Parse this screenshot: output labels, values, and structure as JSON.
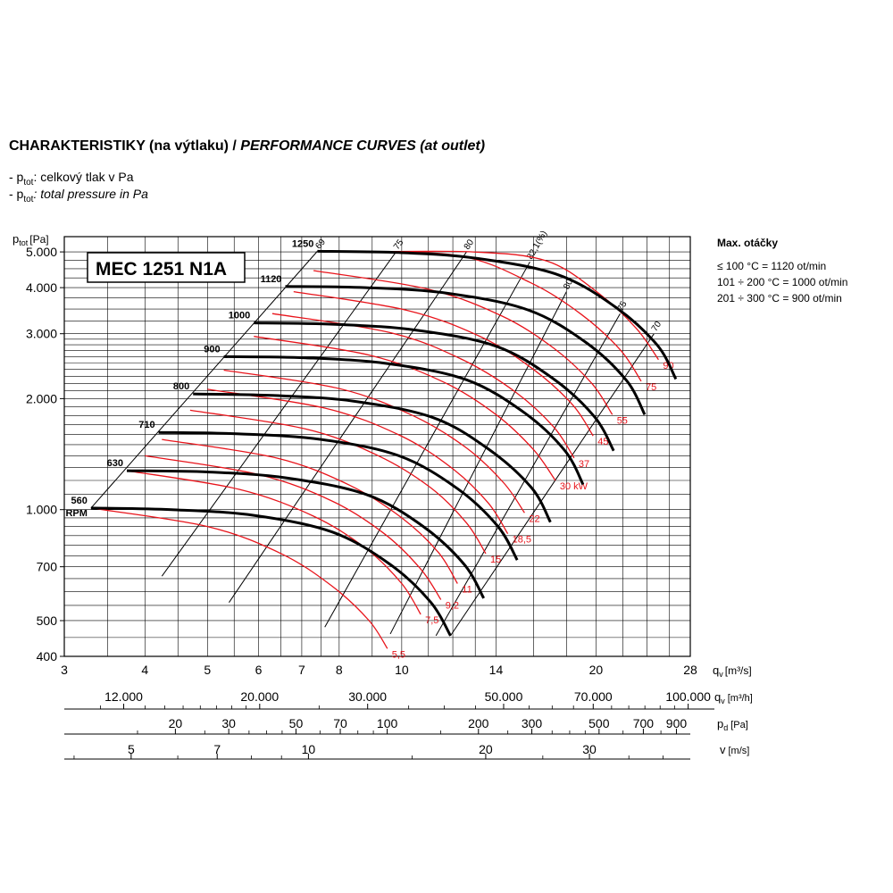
{
  "heading": {
    "cz": "CHARAKTERISTIKY (na výtlaku) / ",
    "en": "PERFORMANCE CURVES (at outlet)"
  },
  "legend_lines": [
    {
      "prefix": "- p",
      "sub": "tot",
      "text": ": celkový tlak v Pa"
    },
    {
      "prefix": "- p",
      "sub": "tot",
      "text": ": total pressure in Pa"
    }
  ],
  "model_label": "MEC 1251 N1A",
  "max_speed": {
    "title": "Max. otáčky",
    "lines": [
      "≤ 100 °C = 1120 ot/min",
      "101 ÷ 200 °C = 1000 ot/min",
      "201 ÷ 300 °C = 900 ot/min"
    ]
  },
  "colors": {
    "fan_curve": "#000000",
    "power_curve": "#e8141b",
    "grid": "#000000",
    "power_label": "#e8141b"
  },
  "chart_data": {
    "type": "line",
    "y_axis": {
      "label": "p",
      "label_sub": "tot",
      "unit": "[Pa]",
      "scale": "log",
      "range": [
        400,
        5500
      ],
      "ticks": [
        {
          "v": 400,
          "t": "400"
        },
        {
          "v": 500,
          "t": "500"
        },
        {
          "v": 700,
          "t": "700"
        },
        {
          "v": 1000,
          "t": "1.000"
        },
        {
          "v": 2000,
          "t": "2.000"
        },
        {
          "v": 3000,
          "t": "3.000"
        },
        {
          "v": 4000,
          "t": "4.000"
        },
        {
          "v": 5000,
          "t": "5.000"
        }
      ]
    },
    "x_axis": {
      "label": "q",
      "label_sub": "v",
      "unit": "[m³/s]",
      "scale": "log",
      "range": [
        3,
        28
      ],
      "ticks": [
        {
          "v": 3,
          "t": "3"
        },
        {
          "v": 4,
          "t": "4"
        },
        {
          "v": 5,
          "t": "5"
        },
        {
          "v": 6,
          "t": "6"
        },
        {
          "v": 7,
          "t": "7"
        },
        {
          "v": 8,
          "t": "8"
        },
        {
          "v": 10,
          "t": "10"
        },
        {
          "v": 14,
          "t": "14"
        },
        {
          "v": 20,
          "t": "20"
        },
        {
          "v": 28,
          "t": "28"
        }
      ]
    },
    "secondary_axes": [
      {
        "label": "q",
        "label_sub": "v",
        "unit": "[m³/h]",
        "ticks": [
          {
            "v": 12000,
            "t": "12.000"
          },
          {
            "v": 20000,
            "t": "20.000"
          },
          {
            "v": 30000,
            "t": "30.000"
          },
          {
            "v": 50000,
            "t": "50.000"
          },
          {
            "v": 70000,
            "t": "70.000"
          },
          {
            "v": 100000,
            "t": "100.000"
          }
        ]
      },
      {
        "label": "p",
        "label_sub": "d",
        "unit": "[Pa]",
        "ticks": [
          {
            "v": 20,
            "t": "20"
          },
          {
            "v": 30,
            "t": "30"
          },
          {
            "v": 50,
            "t": "50"
          },
          {
            "v": 70,
            "t": "70"
          },
          {
            "v": 100,
            "t": "100"
          },
          {
            "v": 200,
            "t": "200"
          },
          {
            "v": 300,
            "t": "300"
          },
          {
            "v": 500,
            "t": "500"
          },
          {
            "v": 700,
            "t": "700"
          },
          {
            "v": 900,
            "t": "900"
          }
        ]
      },
      {
        "label": "v",
        "label_sub": "",
        "unit": "[m/s]",
        "ticks": [
          {
            "v": 5,
            "t": "5"
          },
          {
            "v": 7,
            "t": "7"
          },
          {
            "v": 10,
            "t": "10"
          },
          {
            "v": 20,
            "t": "20"
          },
          {
            "v": 30,
            "t": "30"
          }
        ]
      }
    ],
    "fan_curves": [
      {
        "name": "560",
        "extra": "RPM",
        "q": [
          3.3,
          4.4,
          5.9,
          7.8,
          9.6,
          11.1,
          11.9
        ],
        "p": [
          1010,
          1000,
          965,
          870,
          710,
          560,
          455
        ]
      },
      {
        "name": "630",
        "q": [
          3.75,
          5.0,
          6.6,
          8.8,
          10.8,
          12.5,
          13.4
        ],
        "p": [
          1275,
          1265,
          1220,
          1100,
          900,
          710,
          575
        ]
      },
      {
        "name": "710",
        "q": [
          4.2,
          5.6,
          7.5,
          9.9,
          12.2,
          14.1,
          15.1
        ],
        "p": [
          1620,
          1605,
          1550,
          1400,
          1140,
          900,
          730
        ]
      },
      {
        "name": "800",
        "q": [
          4.75,
          6.3,
          8.4,
          11.2,
          13.7,
          15.9,
          17.0
        ],
        "p": [
          2060,
          2040,
          1970,
          1775,
          1450,
          1145,
          925
        ]
      },
      {
        "name": "900",
        "q": [
          5.3,
          7.1,
          9.5,
          12.6,
          15.5,
          17.9,
          19.1
        ],
        "p": [
          2600,
          2580,
          2490,
          2250,
          1830,
          1445,
          1170
        ]
      },
      {
        "name": "1000",
        "q": [
          5.9,
          7.9,
          10.5,
          14.0,
          17.2,
          19.9,
          21.3
        ],
        "p": [
          3210,
          3180,
          3070,
          2775,
          2260,
          1785,
          1445
        ]
      },
      {
        "name": "1120",
        "q": [
          6.6,
          8.8,
          11.8,
          15.7,
          19.3,
          22.3,
          23.8
        ],
        "p": [
          4030,
          4000,
          3860,
          3480,
          2840,
          2240,
          1810
        ]
      },
      {
        "name": "1250",
        "q": [
          7.4,
          9.9,
          13.1,
          17.5,
          21.5,
          24.9,
          26.6
        ],
        "p": [
          5020,
          4980,
          4800,
          4330,
          3530,
          2790,
          2260
        ]
      }
    ],
    "power_curves": [
      {
        "name": "5,5",
        "q": [
          3.3,
          5.0,
          6.5,
          7.8,
          8.9,
          9.5
        ],
        "p": [
          1010,
          900,
          760,
          620,
          500,
          420
        ]
      },
      {
        "name": "7,5",
        "q": [
          3.75,
          5.6,
          7.3,
          8.8,
          10.0,
          10.7
        ],
        "p": [
          1275,
          1135,
          960,
          785,
          630,
          520
        ]
      },
      {
        "name": "9,2",
        "q": [
          4.0,
          6.0,
          7.8,
          9.4,
          10.7,
          11.5
        ],
        "p": [
          1400,
          1245,
          1055,
          860,
          690,
          570
        ]
      },
      {
        "name": "11",
        "q": [
          4.25,
          6.4,
          8.3,
          10.0,
          11.4,
          12.2
        ],
        "p": [
          1550,
          1380,
          1165,
          950,
          765,
          630
        ]
      },
      {
        "name": "15",
        "q": [
          4.7,
          7.1,
          9.2,
          11.1,
          12.6,
          13.5
        ],
        "p": [
          1860,
          1655,
          1400,
          1145,
          920,
          760
        ]
      },
      {
        "name": "18,5",
        "q": [
          5.0,
          7.6,
          9.9,
          11.9,
          13.6,
          14.6
        ],
        "p": [
          2120,
          1885,
          1595,
          1305,
          1045,
          860
        ]
      },
      {
        "name": "22",
        "q": [
          5.3,
          8.0,
          10.4,
          12.6,
          14.4,
          15.5
        ],
        "p": [
          2390,
          2130,
          1800,
          1470,
          1180,
          980
        ]
      },
      {
        "name": "30 kW",
        "q": [
          5.9,
          8.9,
          11.6,
          14.0,
          16.0,
          17.3
        ],
        "p": [
          2950,
          2625,
          2220,
          1810,
          1455,
          1200
        ]
      },
      {
        "name": "37",
        "q": [
          6.3,
          9.6,
          12.4,
          15.0,
          17.2,
          18.5
        ],
        "p": [
          3400,
          3020,
          2555,
          2085,
          1675,
          1380
        ]
      },
      {
        "name": "45",
        "q": [
          6.8,
          10.2,
          13.3,
          16.0,
          18.4,
          19.8
        ],
        "p": [
          3900,
          3470,
          2935,
          2400,
          1925,
          1585
        ]
      },
      {
        "name": "55",
        "q": [
          7.3,
          11.0,
          14.3,
          17.2,
          19.7,
          21.2
        ],
        "p": [
          4450,
          3960,
          3350,
          2740,
          2200,
          1810
        ]
      },
      {
        "name": "75",
        "q": [
          8.1,
          12.2,
          15.8,
          19.0,
          21.8,
          23.5
        ],
        "p": [
          5000,
          4890,
          4135,
          3380,
          2715,
          2230
        ]
      },
      {
        "name": "90",
        "q": [
          8.6,
          12.9,
          16.8,
          20.2,
          23.1,
          25.0
        ],
        "p": [
          5000,
          5000,
          4720,
          3860,
          3100,
          2550
        ]
      }
    ],
    "efficiency_lines": [
      {
        "name": "69",
        "q": [
          3.3,
          7.4
        ],
        "p": [
          1010,
          5020
        ]
      },
      {
        "name": "75",
        "q": [
          4.25,
          9.8
        ],
        "p": [
          660,
          5000
        ]
      },
      {
        "name": "80",
        "q": [
          5.4,
          12.6
        ],
        "p": [
          560,
          5000
        ]
      },
      {
        "name": "82,1(%)",
        "q": [
          7.6,
          15.8
        ],
        "p": [
          480,
          4700
        ]
      },
      {
        "name": "80",
        "q": [
          9.6,
          18.0
        ],
        "p": [
          460,
          3900
        ]
      },
      {
        "name": "75",
        "q": [
          11.3,
          21.8
        ],
        "p": [
          455,
          3400
        ]
      },
      {
        "name": "70",
        "q": [
          11.9,
          24.6
        ],
        "p": [
          455,
          3000
        ]
      }
    ]
  }
}
